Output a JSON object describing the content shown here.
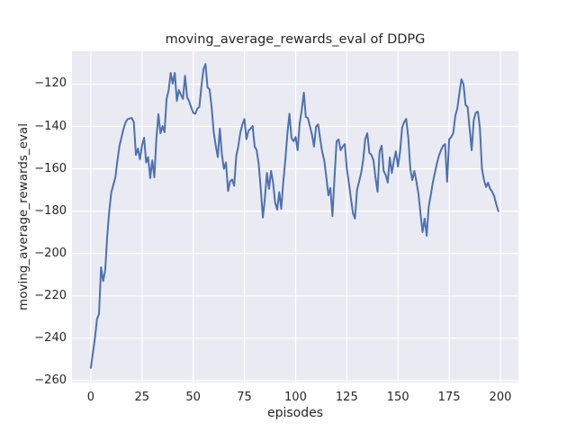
{
  "chart_data": {
    "type": "line",
    "title": "moving_average_rewards_eval of DDPG",
    "xlabel": "episodes",
    "ylabel": "moving_average_rewards_eval",
    "legend": null,
    "grid": true,
    "line_color": "#4c72b0",
    "panel_bg": "#eaeaf2",
    "grid_color": "#ffffff",
    "text_color": "#262626",
    "xticks": [
      0,
      25,
      50,
      75,
      100,
      125,
      150,
      175,
      200
    ],
    "yticks": [
      -120,
      -140,
      -160,
      -180,
      -200,
      -220,
      -240,
      -260
    ],
    "xlim": [
      -9.2,
      208.8
    ],
    "ylim": [
      -260.9,
      -104.5
    ],
    "x_start": 0,
    "x_step": 1,
    "values": [
      -254,
      -247,
      -240,
      -231,
      -228.5,
      -206.5,
      -213,
      -208,
      -192,
      -180,
      -171,
      -167.5,
      -164,
      -156,
      -149,
      -145,
      -141,
      -138,
      -136.5,
      -136.2,
      -136,
      -138,
      -153.4,
      -150.4,
      -155.5,
      -149,
      -145.3,
      -157,
      -154.5,
      -164.4,
      -156,
      -164,
      -146,
      -134.2,
      -143.2,
      -139.8,
      -142.7,
      -127,
      -122.8,
      -114.7,
      -119.8,
      -114.7,
      -127.9,
      -122.8,
      -125,
      -127,
      -116,
      -126.2,
      -128,
      -131,
      -133.5,
      -134,
      -131.6,
      -130.8,
      -121,
      -113,
      -110.5,
      -121.5,
      -122.5,
      -131,
      -142.5,
      -149,
      -154.5,
      -141,
      -153,
      -160,
      -157,
      -170.5,
      -166,
      -165,
      -168,
      -154,
      -149.5,
      -143,
      -139,
      -136.5,
      -146,
      -142,
      -141,
      -139.8,
      -149.5,
      -151.2,
      -158,
      -170,
      -183,
      -174,
      -161.9,
      -169.5,
      -161,
      -166.5,
      -176,
      -179.3,
      -171,
      -178.9,
      -166,
      -155.5,
      -143,
      -134,
      -145.5,
      -147,
      -145,
      -151.2,
      -138.5,
      -132.1,
      -124,
      -135.5,
      -136,
      -140,
      -144,
      -149.5,
      -140,
      -139,
      -146,
      -152,
      -156,
      -164,
      -172.5,
      -169,
      -182.3,
      -164,
      -147,
      -146.1,
      -151.2,
      -149.5,
      -148.3,
      -159.7,
      -166.5,
      -174,
      -181,
      -183.5,
      -170,
      -166,
      -161.9,
      -156,
      -146,
      -143.2,
      -152.5,
      -153.4,
      -155.9,
      -164,
      -170.8,
      -152,
      -149.1,
      -161,
      -163,
      -166.5,
      -154.6,
      -161.9,
      -156,
      -151.7,
      -158.9,
      -152,
      -140.6,
      -138,
      -136.4,
      -145,
      -160,
      -165.3,
      -161,
      -166,
      -172,
      -181,
      -189.9,
      -183.5,
      -191.6,
      -178,
      -172.5,
      -166.5,
      -161.9,
      -157.6,
      -153.8,
      -151.2,
      -149.1,
      -148.3,
      -166.1,
      -146.1,
      -144.9,
      -143.2,
      -135,
      -131.3,
      -124,
      -117.7,
      -120,
      -129.9,
      -130.8,
      -141,
      -151.2,
      -137,
      -133.4,
      -133,
      -140.6,
      -160,
      -165.3,
      -168.6,
      -166.5,
      -169.5,
      -170.8,
      -173,
      -176.7,
      -180
    ]
  }
}
